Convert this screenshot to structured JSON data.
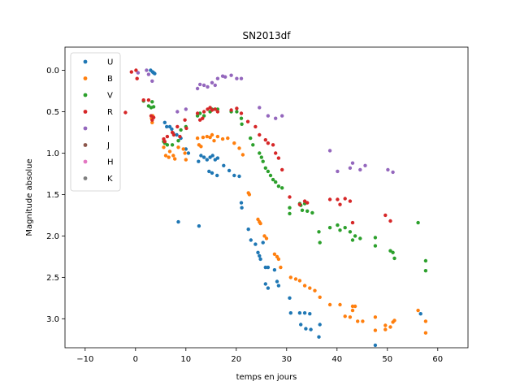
{
  "chart_data": {
    "type": "scatter",
    "title": "SN2013df",
    "xlabel": "temps en jours",
    "ylabel": "Magnitude absolue",
    "xlim": [
      -14,
      66
    ],
    "ylim": [
      3.35,
      -0.28
    ],
    "y_inverted": true,
    "xticks": [
      -10,
      0,
      10,
      20,
      30,
      40,
      50,
      60
    ],
    "yticks": [
      0.0,
      0.5,
      1.0,
      1.5,
      2.0,
      2.5,
      3.0
    ],
    "xtick_labels": [
      "−10",
      "0",
      "10",
      "20",
      "30",
      "40",
      "50",
      "60"
    ],
    "ytick_labels": [
      "0.0",
      "0.5",
      "1.0",
      "1.5",
      "2.0",
      "2.5",
      "3.0"
    ],
    "legend_position": "upper-left",
    "series": [
      {
        "name": "U",
        "color": "#1f77b4",
        "points": [
          [
            3.0,
            0.0
          ],
          [
            3.4,
            0.02
          ],
          [
            3.6,
            0.03
          ],
          [
            3.8,
            0.04
          ],
          [
            5.8,
            0.63
          ],
          [
            6.2,
            0.68
          ],
          [
            6.8,
            0.68
          ],
          [
            7.2,
            0.71
          ],
          [
            7.5,
            0.76
          ],
          [
            8.2,
            0.78
          ],
          [
            9.0,
            0.82
          ],
          [
            10.0,
            0.95
          ],
          [
            10.5,
            1.0
          ],
          [
            12.5,
            1.1
          ],
          [
            13.0,
            1.03
          ],
          [
            13.6,
            1.05
          ],
          [
            14.2,
            1.08
          ],
          [
            14.8,
            1.05
          ],
          [
            15.3,
            1.03
          ],
          [
            15.8,
            1.08
          ],
          [
            16.3,
            1.06
          ],
          [
            17.5,
            1.15
          ],
          [
            14.6,
            1.22
          ],
          [
            15.2,
            1.24
          ],
          [
            16.2,
            1.27
          ],
          [
            18.6,
            1.21
          ],
          [
            19.6,
            1.27
          ],
          [
            20.6,
            1.28
          ],
          [
            21.0,
            1.6
          ],
          [
            21.1,
            1.66
          ],
          [
            22.4,
            1.92
          ],
          [
            22.9,
            2.05
          ],
          [
            23.8,
            2.1
          ],
          [
            24.3,
            2.2
          ],
          [
            24.6,
            2.24
          ],
          [
            24.8,
            2.28
          ],
          [
            25.3,
            2.08
          ],
          [
            25.8,
            2.38
          ],
          [
            26.3,
            2.38
          ],
          [
            25.8,
            2.58
          ],
          [
            26.3,
            2.63
          ],
          [
            27.6,
            2.41
          ],
          [
            28.1,
            2.55
          ],
          [
            28.4,
            2.6
          ],
          [
            30.6,
            2.75
          ],
          [
            30.8,
            2.93
          ],
          [
            32.6,
            2.93
          ],
          [
            33.6,
            2.93
          ],
          [
            34.6,
            2.94
          ],
          [
            32.8,
            3.07
          ],
          [
            33.8,
            3.12
          ],
          [
            34.8,
            3.13
          ],
          [
            36.4,
            3.22
          ],
          [
            36.6,
            3.07
          ],
          [
            47.6,
            3.32
          ],
          [
            56.6,
            2.94
          ],
          [
            8.5,
            1.83
          ],
          [
            12.6,
            1.88
          ]
        ]
      },
      {
        "name": "B",
        "color": "#ff7f0e",
        "points": [
          [
            3.2,
            0.58
          ],
          [
            3.3,
            0.63
          ],
          [
            3.4,
            0.55
          ],
          [
            5.6,
            0.93
          ],
          [
            6.0,
            1.03
          ],
          [
            6.6,
            1.05
          ],
          [
            6.8,
            0.98
          ],
          [
            7.5,
            1.03
          ],
          [
            7.8,
            1.07
          ],
          [
            8.5,
            0.93
          ],
          [
            9.5,
            0.95
          ],
          [
            9.8,
            1.0
          ],
          [
            10.0,
            1.08
          ],
          [
            12.3,
            0.82
          ],
          [
            12.6,
            0.9
          ],
          [
            13.0,
            0.92
          ],
          [
            13.4,
            0.81
          ],
          [
            14.2,
            0.8
          ],
          [
            14.8,
            0.81
          ],
          [
            15.2,
            0.78
          ],
          [
            15.6,
            0.85
          ],
          [
            16.3,
            0.8
          ],
          [
            17.3,
            0.83
          ],
          [
            18.3,
            0.82
          ],
          [
            19.6,
            0.88
          ],
          [
            20.6,
            0.94
          ],
          [
            21.3,
            1.02
          ],
          [
            22.4,
            1.48
          ],
          [
            22.6,
            1.5
          ],
          [
            24.3,
            1.8
          ],
          [
            24.6,
            1.83
          ],
          [
            24.8,
            1.85
          ],
          [
            25.6,
            2.0
          ],
          [
            26.0,
            2.03
          ],
          [
            27.6,
            2.22
          ],
          [
            28.1,
            2.25
          ],
          [
            28.4,
            2.28
          ],
          [
            28.8,
            2.38
          ],
          [
            30.8,
            2.5
          ],
          [
            31.8,
            2.52
          ],
          [
            32.6,
            2.54
          ],
          [
            33.6,
            2.6
          ],
          [
            34.6,
            2.63
          ],
          [
            35.6,
            2.66
          ],
          [
            36.6,
            2.74
          ],
          [
            38.6,
            2.83
          ],
          [
            40.6,
            2.83
          ],
          [
            41.6,
            2.97
          ],
          [
            42.6,
            2.98
          ],
          [
            43.1,
            2.85
          ],
          [
            43.6,
            2.85
          ],
          [
            43.1,
            2.9
          ],
          [
            44.1,
            3.03
          ],
          [
            45.1,
            3.03
          ],
          [
            47.6,
            2.98
          ],
          [
            47.6,
            3.14
          ],
          [
            49.6,
            3.08
          ],
          [
            49.6,
            3.13
          ],
          [
            50.6,
            3.1
          ],
          [
            51.1,
            3.04
          ],
          [
            51.4,
            3.02
          ],
          [
            56.1,
            2.9
          ],
          [
            57.6,
            3.03
          ],
          [
            57.6,
            3.17
          ]
        ]
      },
      {
        "name": "V",
        "color": "#2ca02c",
        "points": [
          [
            1.6,
            0.37
          ],
          [
            2.6,
            0.43
          ],
          [
            3.1,
            0.45
          ],
          [
            3.3,
            0.38
          ],
          [
            3.6,
            0.44
          ],
          [
            5.6,
            0.86
          ],
          [
            5.8,
            0.88
          ],
          [
            6.3,
            0.9
          ],
          [
            7.3,
            0.9
          ],
          [
            8.5,
            0.85
          ],
          [
            9.0,
            0.72
          ],
          [
            10.0,
            0.68
          ],
          [
            12.3,
            0.55
          ],
          [
            12.8,
            0.52
          ],
          [
            13.6,
            0.55
          ],
          [
            14.8,
            0.5
          ],
          [
            15.2,
            0.47
          ],
          [
            15.8,
            0.47
          ],
          [
            16.3,
            0.47
          ],
          [
            19.0,
            0.5
          ],
          [
            20.1,
            0.5
          ],
          [
            21.0,
            0.58
          ],
          [
            21.1,
            0.65
          ],
          [
            22.8,
            0.82
          ],
          [
            23.3,
            0.9
          ],
          [
            24.6,
            1.0
          ],
          [
            25.0,
            1.05
          ],
          [
            25.3,
            1.1
          ],
          [
            25.8,
            1.18
          ],
          [
            26.3,
            1.22
          ],
          [
            26.8,
            1.27
          ],
          [
            27.3,
            1.32
          ],
          [
            27.8,
            1.35
          ],
          [
            28.4,
            1.4
          ],
          [
            29.1,
            1.42
          ],
          [
            30.6,
            1.66
          ],
          [
            30.6,
            1.73
          ],
          [
            32.6,
            1.61
          ],
          [
            32.8,
            1.63
          ],
          [
            33.1,
            1.69
          ],
          [
            33.6,
            1.61
          ],
          [
            34.1,
            1.7
          ],
          [
            35.1,
            1.72
          ],
          [
            36.4,
            1.95
          ],
          [
            36.6,
            2.08
          ],
          [
            38.6,
            1.9
          ],
          [
            40.1,
            1.87
          ],
          [
            40.6,
            1.93
          ],
          [
            41.6,
            1.9
          ],
          [
            42.6,
            1.95
          ],
          [
            43.1,
            2.05
          ],
          [
            43.6,
            2.0
          ],
          [
            44.6,
            2.03
          ],
          [
            47.6,
            2.02
          ],
          [
            47.6,
            2.12
          ],
          [
            50.6,
            2.18
          ],
          [
            51.1,
            2.2
          ],
          [
            51.4,
            2.27
          ],
          [
            56.1,
            1.84
          ],
          [
            57.6,
            2.3
          ],
          [
            57.6,
            2.42
          ]
        ]
      },
      {
        "name": "R",
        "color": "#d62728",
        "points": [
          [
            -2.0,
            0.51
          ],
          [
            -0.8,
            0.02
          ],
          [
            0.1,
            0.0
          ],
          [
            0.3,
            0.1
          ],
          [
            1.6,
            0.36
          ],
          [
            2.6,
            0.36
          ],
          [
            3.1,
            0.55
          ],
          [
            3.3,
            0.6
          ],
          [
            3.6,
            0.57
          ],
          [
            5.6,
            0.83
          ],
          [
            5.8,
            0.86
          ],
          [
            6.3,
            0.8
          ],
          [
            7.3,
            0.75
          ],
          [
            7.6,
            0.78
          ],
          [
            8.3,
            0.68
          ],
          [
            8.8,
            0.8
          ],
          [
            9.8,
            0.6
          ],
          [
            10.1,
            0.7
          ],
          [
            12.3,
            0.52
          ],
          [
            12.8,
            0.6
          ],
          [
            13.3,
            0.58
          ],
          [
            13.6,
            0.5
          ],
          [
            14.3,
            0.47
          ],
          [
            14.8,
            0.45
          ],
          [
            15.2,
            0.48
          ],
          [
            15.8,
            0.47
          ],
          [
            16.3,
            0.5
          ],
          [
            19.0,
            0.48
          ],
          [
            20.1,
            0.46
          ],
          [
            21.0,
            0.52
          ],
          [
            22.3,
            0.62
          ],
          [
            23.8,
            0.68
          ],
          [
            24.6,
            0.78
          ],
          [
            25.8,
            0.84
          ],
          [
            26.3,
            0.88
          ],
          [
            27.3,
            0.9
          ],
          [
            27.8,
            1.0
          ],
          [
            28.4,
            1.06
          ],
          [
            29.1,
            1.2
          ],
          [
            30.6,
            1.53
          ],
          [
            32.6,
            1.62
          ],
          [
            33.6,
            1.58
          ],
          [
            34.1,
            1.6
          ],
          [
            38.6,
            1.56
          ],
          [
            40.1,
            1.56
          ],
          [
            40.6,
            1.62
          ],
          [
            41.6,
            1.55
          ],
          [
            42.6,
            1.58
          ],
          [
            43.1,
            1.84
          ],
          [
            49.6,
            1.75
          ],
          [
            50.6,
            1.82
          ]
        ]
      },
      {
        "name": "I",
        "color": "#9467bd",
        "points": [
          [
            0.5,
            0.03
          ],
          [
            2.2,
            0.0
          ],
          [
            2.6,
            0.05
          ],
          [
            3.3,
            0.13
          ],
          [
            8.3,
            0.5
          ],
          [
            10.0,
            0.47
          ],
          [
            12.3,
            0.22
          ],
          [
            12.8,
            0.17
          ],
          [
            13.6,
            0.18
          ],
          [
            14.3,
            0.2
          ],
          [
            15.2,
            0.15
          ],
          [
            15.8,
            0.18
          ],
          [
            16.3,
            0.1
          ],
          [
            17.3,
            0.07
          ],
          [
            17.8,
            0.08
          ],
          [
            19.0,
            0.06
          ],
          [
            20.1,
            0.1
          ],
          [
            21.0,
            0.1
          ],
          [
            24.6,
            0.45
          ],
          [
            26.3,
            0.55
          ],
          [
            27.8,
            0.58
          ],
          [
            29.1,
            0.55
          ],
          [
            38.6,
            0.97
          ],
          [
            40.1,
            1.22
          ],
          [
            42.6,
            1.18
          ],
          [
            43.1,
            1.12
          ],
          [
            44.6,
            1.2
          ],
          [
            45.6,
            1.15
          ],
          [
            50.1,
            1.2
          ],
          [
            51.1,
            1.23
          ]
        ]
      },
      {
        "name": "J",
        "color": "#8c564b",
        "points": []
      },
      {
        "name": "H",
        "color": "#e377c2",
        "points": []
      },
      {
        "name": "K",
        "color": "#7f7f7f",
        "points": []
      }
    ]
  }
}
